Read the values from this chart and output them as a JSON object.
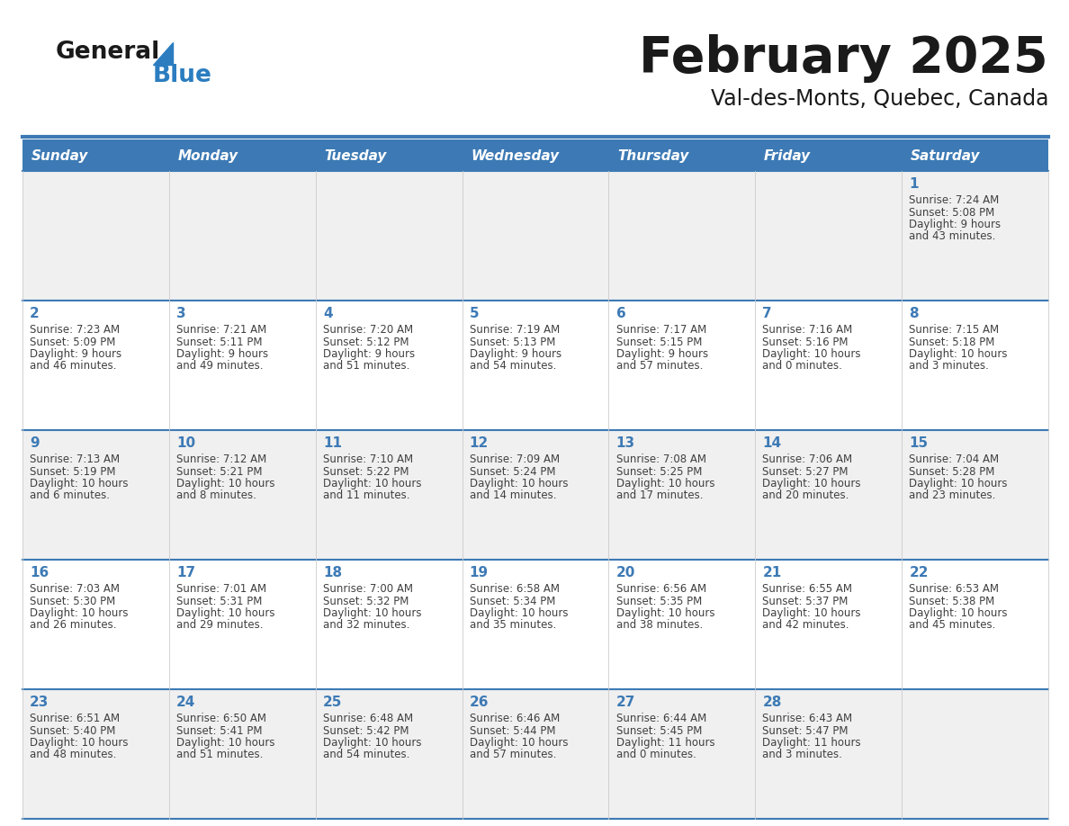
{
  "title": "February 2025",
  "subtitle": "Val-des-Monts, Quebec, Canada",
  "days_of_week": [
    "Sunday",
    "Monday",
    "Tuesday",
    "Wednesday",
    "Thursday",
    "Friday",
    "Saturday"
  ],
  "header_bg": "#3d7ab5",
  "header_text": "#ffffff",
  "cell_bg_odd": "#f0f0f0",
  "cell_bg_even": "#ffffff",
  "line_color": "#3d7ab5",
  "day_number_color": "#3d7ab5",
  "info_text_color": "#404040",
  "title_color": "#1a1a1a",
  "logo_general_color": "#1a1a1a",
  "logo_blue_color": "#2b7dc0",
  "calendar_data": [
    {
      "day": 1,
      "col": 6,
      "row": 0,
      "sunrise": "7:24 AM",
      "sunset": "5:08 PM",
      "daylight": "9 hours and 43 minutes."
    },
    {
      "day": 2,
      "col": 0,
      "row": 1,
      "sunrise": "7:23 AM",
      "sunset": "5:09 PM",
      "daylight": "9 hours and 46 minutes."
    },
    {
      "day": 3,
      "col": 1,
      "row": 1,
      "sunrise": "7:21 AM",
      "sunset": "5:11 PM",
      "daylight": "9 hours and 49 minutes."
    },
    {
      "day": 4,
      "col": 2,
      "row": 1,
      "sunrise": "7:20 AM",
      "sunset": "5:12 PM",
      "daylight": "9 hours and 51 minutes."
    },
    {
      "day": 5,
      "col": 3,
      "row": 1,
      "sunrise": "7:19 AM",
      "sunset": "5:13 PM",
      "daylight": "9 hours and 54 minutes."
    },
    {
      "day": 6,
      "col": 4,
      "row": 1,
      "sunrise": "7:17 AM",
      "sunset": "5:15 PM",
      "daylight": "9 hours and 57 minutes."
    },
    {
      "day": 7,
      "col": 5,
      "row": 1,
      "sunrise": "7:16 AM",
      "sunset": "5:16 PM",
      "daylight": "10 hours and 0 minutes."
    },
    {
      "day": 8,
      "col": 6,
      "row": 1,
      "sunrise": "7:15 AM",
      "sunset": "5:18 PM",
      "daylight": "10 hours and 3 minutes."
    },
    {
      "day": 9,
      "col": 0,
      "row": 2,
      "sunrise": "7:13 AM",
      "sunset": "5:19 PM",
      "daylight": "10 hours and 6 minutes."
    },
    {
      "day": 10,
      "col": 1,
      "row": 2,
      "sunrise": "7:12 AM",
      "sunset": "5:21 PM",
      "daylight": "10 hours and 8 minutes."
    },
    {
      "day": 11,
      "col": 2,
      "row": 2,
      "sunrise": "7:10 AM",
      "sunset": "5:22 PM",
      "daylight": "10 hours and 11 minutes."
    },
    {
      "day": 12,
      "col": 3,
      "row": 2,
      "sunrise": "7:09 AM",
      "sunset": "5:24 PM",
      "daylight": "10 hours and 14 minutes."
    },
    {
      "day": 13,
      "col": 4,
      "row": 2,
      "sunrise": "7:08 AM",
      "sunset": "5:25 PM",
      "daylight": "10 hours and 17 minutes."
    },
    {
      "day": 14,
      "col": 5,
      "row": 2,
      "sunrise": "7:06 AM",
      "sunset": "5:27 PM",
      "daylight": "10 hours and 20 minutes."
    },
    {
      "day": 15,
      "col": 6,
      "row": 2,
      "sunrise": "7:04 AM",
      "sunset": "5:28 PM",
      "daylight": "10 hours and 23 minutes."
    },
    {
      "day": 16,
      "col": 0,
      "row": 3,
      "sunrise": "7:03 AM",
      "sunset": "5:30 PM",
      "daylight": "10 hours and 26 minutes."
    },
    {
      "day": 17,
      "col": 1,
      "row": 3,
      "sunrise": "7:01 AM",
      "sunset": "5:31 PM",
      "daylight": "10 hours and 29 minutes."
    },
    {
      "day": 18,
      "col": 2,
      "row": 3,
      "sunrise": "7:00 AM",
      "sunset": "5:32 PM",
      "daylight": "10 hours and 32 minutes."
    },
    {
      "day": 19,
      "col": 3,
      "row": 3,
      "sunrise": "6:58 AM",
      "sunset": "5:34 PM",
      "daylight": "10 hours and 35 minutes."
    },
    {
      "day": 20,
      "col": 4,
      "row": 3,
      "sunrise": "6:56 AM",
      "sunset": "5:35 PM",
      "daylight": "10 hours and 38 minutes."
    },
    {
      "day": 21,
      "col": 5,
      "row": 3,
      "sunrise": "6:55 AM",
      "sunset": "5:37 PM",
      "daylight": "10 hours and 42 minutes."
    },
    {
      "day": 22,
      "col": 6,
      "row": 3,
      "sunrise": "6:53 AM",
      "sunset": "5:38 PM",
      "daylight": "10 hours and 45 minutes."
    },
    {
      "day": 23,
      "col": 0,
      "row": 4,
      "sunrise": "6:51 AM",
      "sunset": "5:40 PM",
      "daylight": "10 hours and 48 minutes."
    },
    {
      "day": 24,
      "col": 1,
      "row": 4,
      "sunrise": "6:50 AM",
      "sunset": "5:41 PM",
      "daylight": "10 hours and 51 minutes."
    },
    {
      "day": 25,
      "col": 2,
      "row": 4,
      "sunrise": "6:48 AM",
      "sunset": "5:42 PM",
      "daylight": "10 hours and 54 minutes."
    },
    {
      "day": 26,
      "col": 3,
      "row": 4,
      "sunrise": "6:46 AM",
      "sunset": "5:44 PM",
      "daylight": "10 hours and 57 minutes."
    },
    {
      "day": 27,
      "col": 4,
      "row": 4,
      "sunrise": "6:44 AM",
      "sunset": "5:45 PM",
      "daylight": "11 hours and 0 minutes."
    },
    {
      "day": 28,
      "col": 5,
      "row": 4,
      "sunrise": "6:43 AM",
      "sunset": "5:47 PM",
      "daylight": "11 hours and 3 minutes."
    }
  ]
}
